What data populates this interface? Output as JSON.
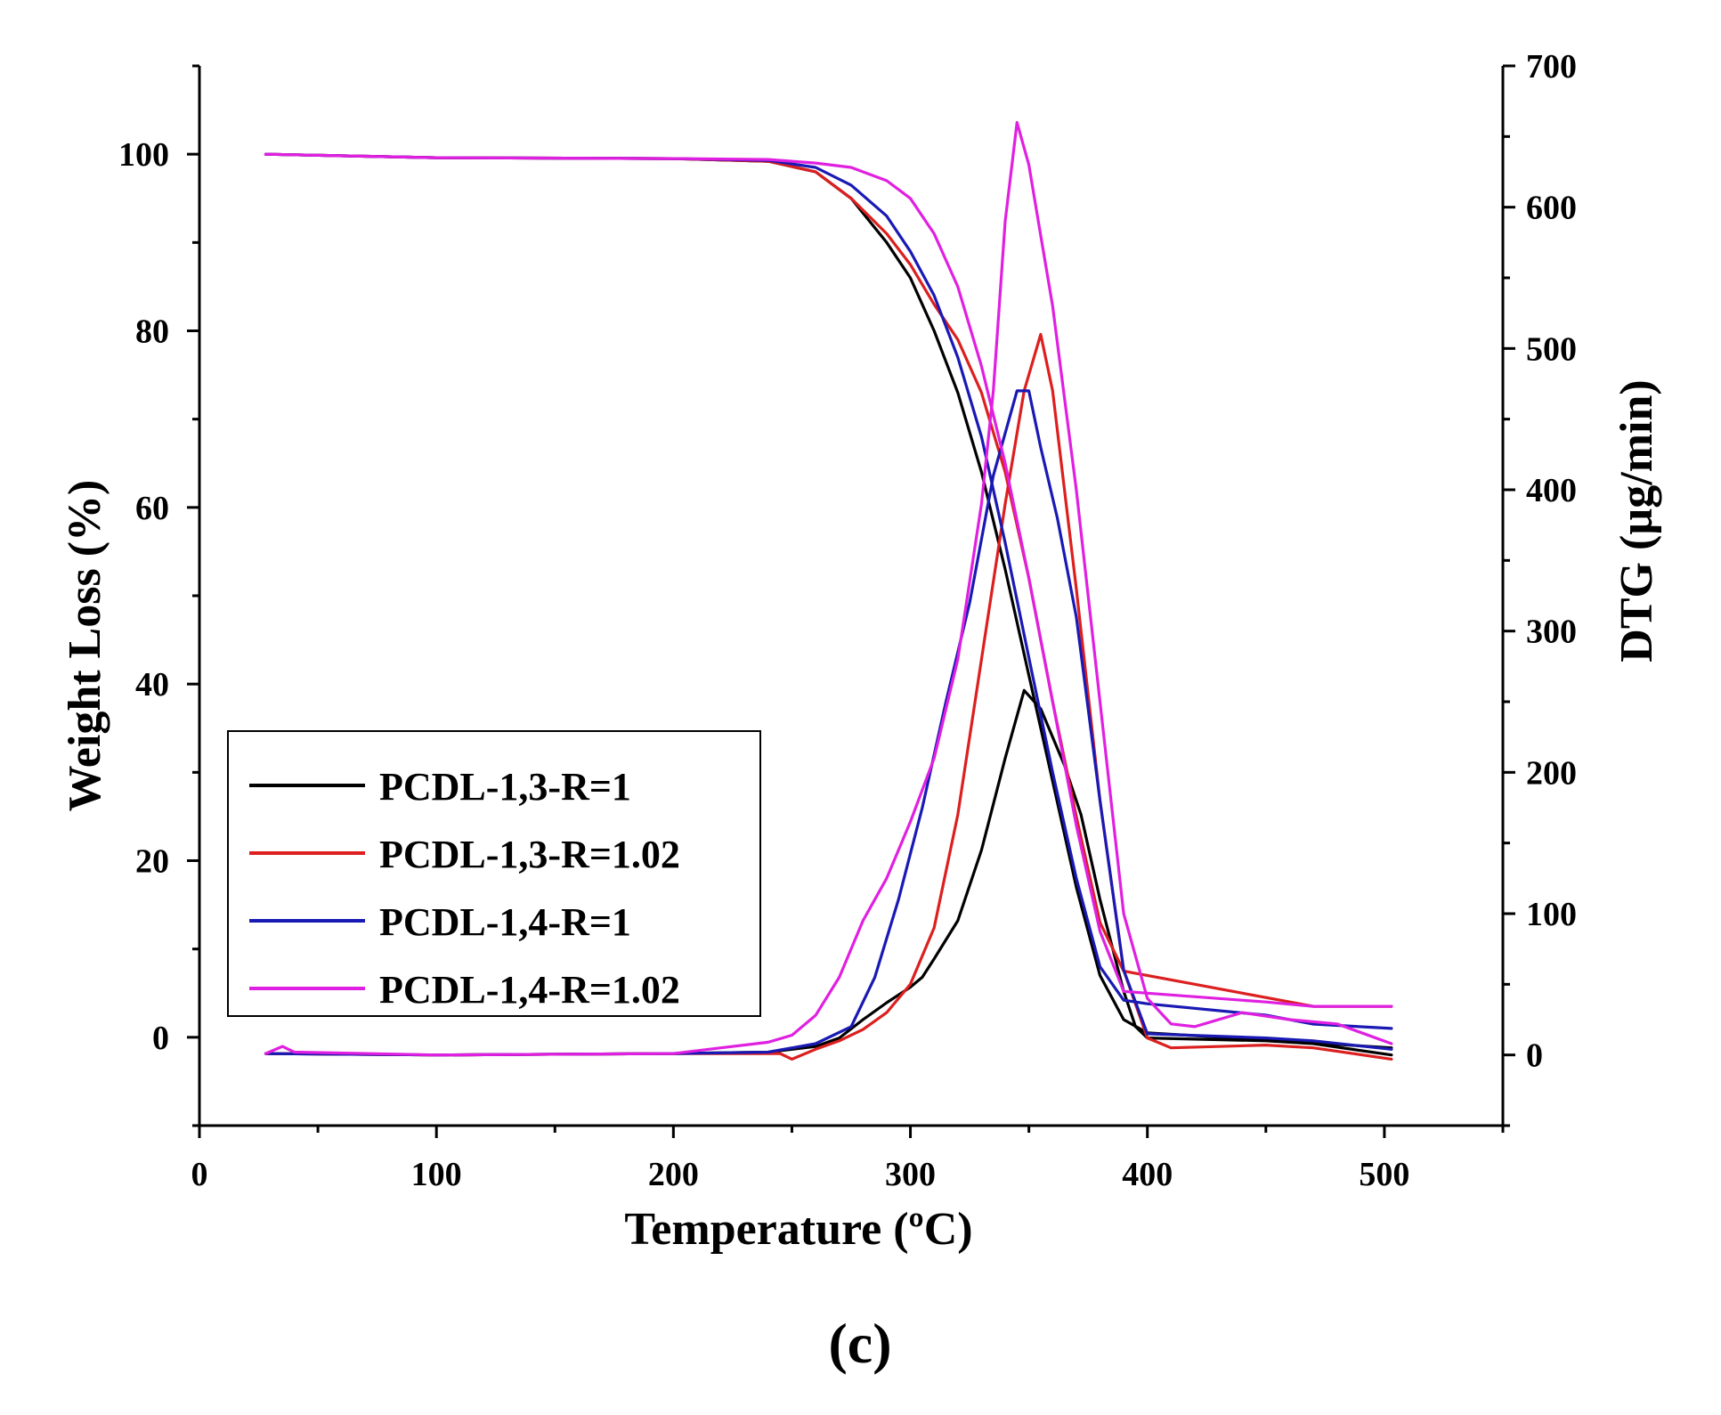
{
  "chart_data": {
    "type": "line",
    "panel_label": "(c)",
    "xlabel": "Temperature (ºC)",
    "ylabel_left": "Weight Loss (%)",
    "ylabel_right": "DTG (µg/min)",
    "xlim": [
      0,
      550
    ],
    "ylim_left": [
      -10,
      110
    ],
    "ylim_right": [
      -50,
      700
    ],
    "xticks": [
      0,
      100,
      200,
      300,
      400,
      500
    ],
    "yticks_left": [
      0,
      20,
      40,
      60,
      80,
      100
    ],
    "yticks_right": [
      0,
      100,
      200,
      300,
      400,
      500,
      600,
      700
    ],
    "legend_position": "lower-left",
    "series": [
      {
        "name": "PCDL-1,3-R=1",
        "color": "#000000",
        "tga": [
          [
            28,
            100
          ],
          [
            100,
            99.6
          ],
          [
            200,
            99.5
          ],
          [
            240,
            99.2
          ],
          [
            260,
            98
          ],
          [
            275,
            95
          ],
          [
            290,
            90
          ],
          [
            300,
            86
          ],
          [
            310,
            80
          ],
          [
            320,
            73
          ],
          [
            330,
            64
          ],
          [
            340,
            53
          ],
          [
            350,
            41
          ],
          [
            360,
            29
          ],
          [
            370,
            17
          ],
          [
            380,
            7
          ],
          [
            390,
            2
          ],
          [
            400,
            0.5
          ],
          [
            450,
            -0.3
          ],
          [
            503,
            -1.2
          ]
        ],
        "dtg": [
          [
            28,
            1
          ],
          [
            100,
            0
          ],
          [
            200,
            1
          ],
          [
            240,
            2
          ],
          [
            260,
            6
          ],
          [
            270,
            12
          ],
          [
            280,
            25
          ],
          [
            290,
            37
          ],
          [
            300,
            48
          ],
          [
            305,
            55
          ],
          [
            310,
            68
          ],
          [
            320,
            95
          ],
          [
            330,
            145
          ],
          [
            340,
            210
          ],
          [
            348,
            258
          ],
          [
            355,
            245
          ],
          [
            365,
            205
          ],
          [
            372,
            170
          ],
          [
            380,
            110
          ],
          [
            390,
            45
          ],
          [
            395,
            20
          ],
          [
            400,
            12
          ],
          [
            450,
            10
          ],
          [
            470,
            8
          ],
          [
            503,
            0
          ]
        ]
      },
      {
        "name": "PCDL-1,3-R=1.02",
        "color": "#dc1f1f",
        "tga": [
          [
            28,
            100
          ],
          [
            100,
            99.6
          ],
          [
            200,
            99.5
          ],
          [
            240,
            99.2
          ],
          [
            260,
            98
          ],
          [
            275,
            95
          ],
          [
            290,
            91
          ],
          [
            300,
            87.5
          ],
          [
            310,
            83
          ],
          [
            320,
            79
          ],
          [
            330,
            73
          ],
          [
            340,
            64
          ],
          [
            350,
            52
          ],
          [
            360,
            38
          ],
          [
            370,
            25
          ],
          [
            380,
            13
          ],
          [
            390,
            7.5
          ],
          [
            400,
            7
          ],
          [
            420,
            6
          ],
          [
            450,
            4.5
          ],
          [
            470,
            3.5
          ],
          [
            503,
            3.5
          ]
        ],
        "dtg": [
          [
            28,
            1
          ],
          [
            100,
            0
          ],
          [
            200,
            1
          ],
          [
            245,
            1
          ],
          [
            250,
            -3
          ],
          [
            260,
            4
          ],
          [
            270,
            10
          ],
          [
            280,
            18
          ],
          [
            290,
            30
          ],
          [
            300,
            50
          ],
          [
            310,
            90
          ],
          [
            320,
            170
          ],
          [
            330,
            280
          ],
          [
            340,
            390
          ],
          [
            348,
            470
          ],
          [
            355,
            510
          ],
          [
            360,
            470
          ],
          [
            370,
            330
          ],
          [
            380,
            180
          ],
          [
            390,
            60
          ],
          [
            400,
            12
          ],
          [
            410,
            5
          ],
          [
            450,
            7
          ],
          [
            470,
            5
          ],
          [
            503,
            -3
          ]
        ]
      },
      {
        "name": "PCDL-1,4-R=1",
        "color": "#1919b4",
        "tga": [
          [
            28,
            100
          ],
          [
            100,
            99.6
          ],
          [
            200,
            99.5
          ],
          [
            240,
            99.3
          ],
          [
            260,
            98.5
          ],
          [
            275,
            96.5
          ],
          [
            290,
            93
          ],
          [
            300,
            89
          ],
          [
            310,
            84
          ],
          [
            320,
            77
          ],
          [
            330,
            68
          ],
          [
            340,
            56
          ],
          [
            350,
            43
          ],
          [
            360,
            30
          ],
          [
            370,
            18
          ],
          [
            380,
            8
          ],
          [
            390,
            4.2
          ],
          [
            400,
            3.8
          ],
          [
            450,
            2.5
          ],
          [
            470,
            1.5
          ],
          [
            503,
            1
          ]
        ],
        "dtg": [
          [
            28,
            1
          ],
          [
            100,
            0
          ],
          [
            200,
            1
          ],
          [
            240,
            2
          ],
          [
            260,
            8
          ],
          [
            275,
            20
          ],
          [
            285,
            55
          ],
          [
            295,
            110
          ],
          [
            305,
            175
          ],
          [
            315,
            250
          ],
          [
            325,
            320
          ],
          [
            335,
            410
          ],
          [
            345,
            470
          ],
          [
            350,
            470
          ],
          [
            355,
            430
          ],
          [
            362,
            380
          ],
          [
            370,
            310
          ],
          [
            380,
            180
          ],
          [
            390,
            60
          ],
          [
            400,
            15
          ],
          [
            450,
            12
          ],
          [
            470,
            10
          ],
          [
            503,
            4
          ]
        ]
      },
      {
        "name": "PCDL-1,4-R=1.02",
        "color": "#e020e0",
        "tga": [
          [
            28,
            100
          ],
          [
            100,
            99.6
          ],
          [
            200,
            99.5
          ],
          [
            240,
            99.4
          ],
          [
            260,
            99
          ],
          [
            275,
            98.5
          ],
          [
            290,
            97
          ],
          [
            300,
            95
          ],
          [
            310,
            91
          ],
          [
            320,
            85
          ],
          [
            330,
            76
          ],
          [
            340,
            65
          ],
          [
            350,
            52
          ],
          [
            360,
            38
          ],
          [
            370,
            24
          ],
          [
            380,
            12
          ],
          [
            390,
            5.2
          ],
          [
            400,
            5
          ],
          [
            450,
            4
          ],
          [
            470,
            3.5
          ],
          [
            503,
            3.5
          ]
        ],
        "dtg": [
          [
            28,
            1
          ],
          [
            35,
            6
          ],
          [
            40,
            2
          ],
          [
            100,
            0
          ],
          [
            200,
            1
          ],
          [
            220,
            5
          ],
          [
            240,
            9
          ],
          [
            250,
            14
          ],
          [
            260,
            28
          ],
          [
            270,
            55
          ],
          [
            280,
            95
          ],
          [
            290,
            125
          ],
          [
            300,
            165
          ],
          [
            310,
            210
          ],
          [
            320,
            280
          ],
          [
            330,
            390
          ],
          [
            335,
            470
          ],
          [
            340,
            590
          ],
          [
            345,
            660
          ],
          [
            350,
            630
          ],
          [
            355,
            580
          ],
          [
            360,
            530
          ],
          [
            370,
            400
          ],
          [
            380,
            250
          ],
          [
            390,
            100
          ],
          [
            400,
            40
          ],
          [
            410,
            22
          ],
          [
            420,
            20
          ],
          [
            440,
            30
          ],
          [
            460,
            25
          ],
          [
            480,
            22
          ],
          [
            503,
            8
          ]
        ]
      }
    ]
  }
}
